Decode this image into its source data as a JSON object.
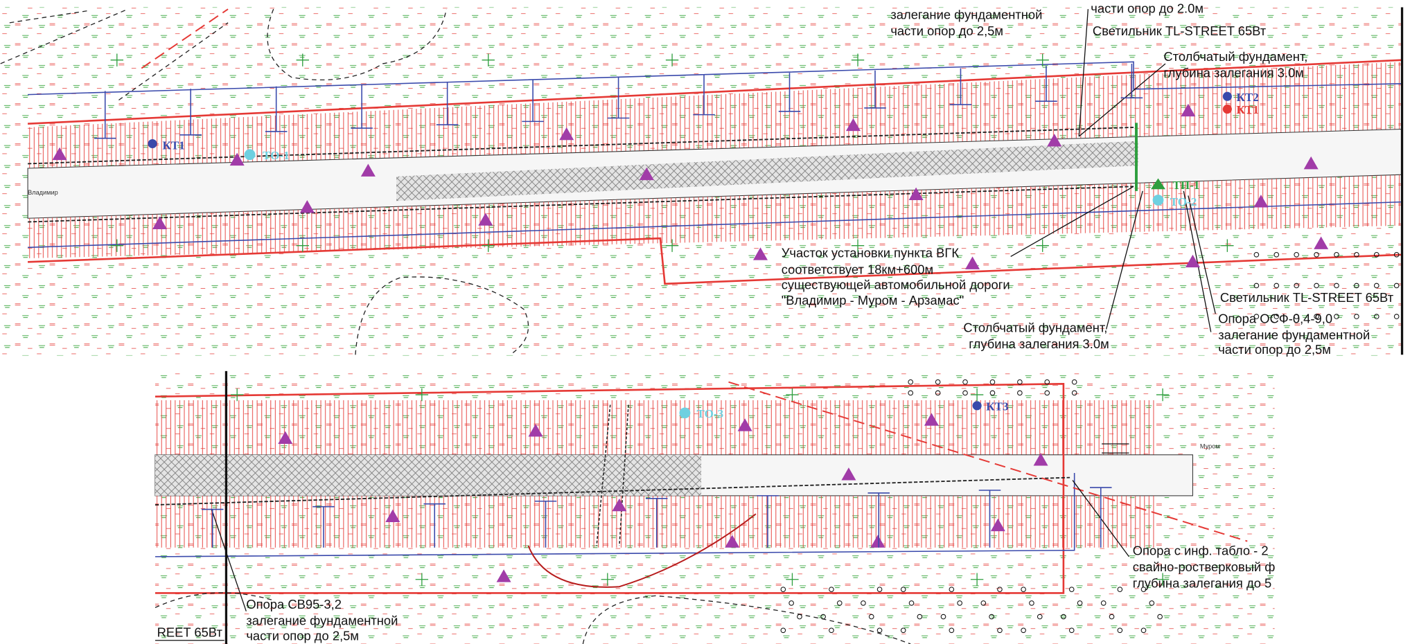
{
  "top": {
    "notes": {
      "support_top_cut": "части опор до 2.0м",
      "foundation_top": [
        "залегание фундаментной",
        "части опор до 2,5м"
      ],
      "lamp_top": "Светильник TL-STREET 65Вт",
      "column_top": [
        "Столбчатый фундамент,",
        "глубина залегания 3.0м"
      ],
      "vgk": [
        "Участок установки пункта ВГК",
        "соответствует 18км+600м",
        "существующей автомобильной дороги",
        "\"Владимир - Муром - Арзамас\""
      ],
      "column_bottom": [
        "Столбчатый фундамент,",
        "глубина залегания 3.0м"
      ],
      "lamp_right": "Светильник TL-STREET 65Вт",
      "osf": [
        "Опора ОСФ-0,4-9,0",
        "залегание фундаментной",
        "части опор до 2,5м"
      ]
    },
    "labels": {
      "kt2": "КТ2",
      "kt1_red": "КТ1",
      "kt1": "КТ1",
      "to1": "ТО-1",
      "tp1": "ТП-1",
      "to2": "ТО-2"
    },
    "road_name": "Владимир"
  },
  "bottom": {
    "labels": {
      "to3": "ТО-3",
      "kt3": "КТ3"
    },
    "road_name": "Муром",
    "notes": {
      "info_board": [
        "Опора с инф. табло - 2",
        "свайно-ростверковый ф",
        "глубина залегания до 5"
      ],
      "sv95": [
        "Опора СВ95-3,2",
        "залегание фундаментной",
        "части опор до 2,5м"
      ],
      "lamp_cut": "REET 65Вт"
    }
  }
}
